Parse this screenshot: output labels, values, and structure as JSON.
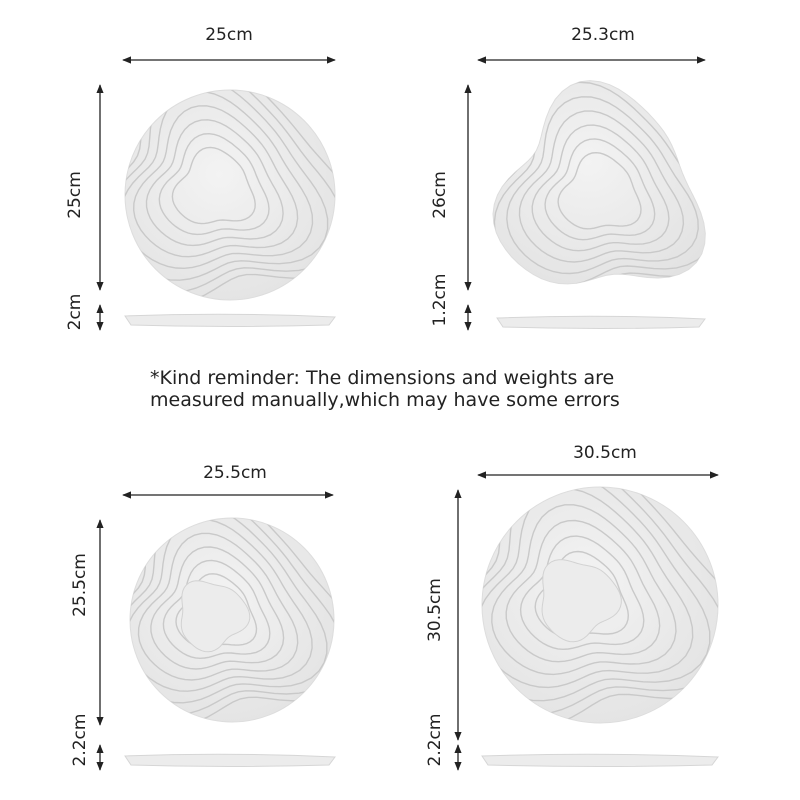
{
  "reminder": {
    "line1": "*Kind reminder: The dimensions and weights are",
    "line2": "measured manually,which may have some errors"
  },
  "products": [
    {
      "width": "25cm",
      "height": "25cm",
      "thickness": "2cm"
    },
    {
      "width": "25.3cm",
      "height": "26cm",
      "thickness": "1.2cm"
    },
    {
      "width": "25.5cm",
      "height": "25.5cm",
      "thickness": "2.2cm"
    },
    {
      "width": "30.5cm",
      "height": "30.5cm",
      "thickness": "2.2cm"
    }
  ]
}
